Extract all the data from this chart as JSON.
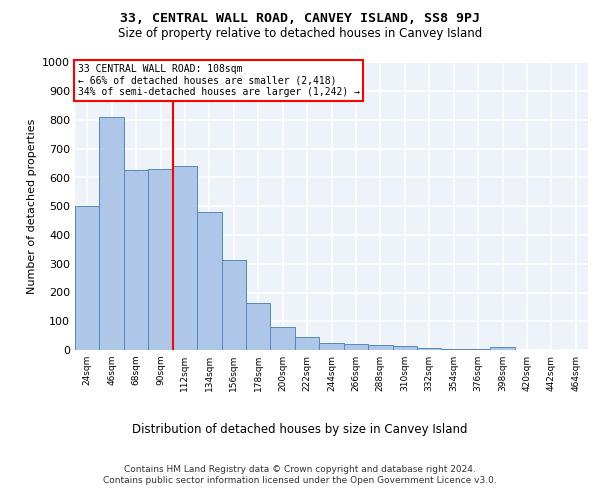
{
  "title": "33, CENTRAL WALL ROAD, CANVEY ISLAND, SS8 9PJ",
  "subtitle": "Size of property relative to detached houses in Canvey Island",
  "xlabel": "Distribution of detached houses by size in Canvey Island",
  "ylabel": "Number of detached properties",
  "footer_line1": "Contains HM Land Registry data © Crown copyright and database right 2024.",
  "footer_line2": "Contains public sector information licensed under the Open Government Licence v3.0.",
  "annotation_line1": "33 CENTRAL WALL ROAD: 108sqm",
  "annotation_line2": "← 66% of detached houses are smaller (2,418)",
  "annotation_line3": "34% of semi-detached houses are larger (1,242) →",
  "property_size": 108,
  "bar_color": "#aec6e8",
  "bar_edge_color": "#5588bb",
  "vline_color": "red",
  "categories": [
    "24sqm",
    "46sqm",
    "68sqm",
    "90sqm",
    "112sqm",
    "134sqm",
    "156sqm",
    "178sqm",
    "200sqm",
    "222sqm",
    "244sqm",
    "266sqm",
    "288sqm",
    "310sqm",
    "332sqm",
    "354sqm",
    "376sqm",
    "398sqm",
    "420sqm",
    "442sqm",
    "464sqm"
  ],
  "values": [
    500,
    810,
    625,
    630,
    640,
    480,
    312,
    162,
    80,
    45,
    25,
    22,
    18,
    13,
    8,
    5,
    5,
    10,
    0,
    0,
    0
  ],
  "ylim": [
    0,
    1000
  ],
  "yticks": [
    0,
    100,
    200,
    300,
    400,
    500,
    600,
    700,
    800,
    900,
    1000
  ],
  "bg_color": "#eef2f9",
  "grid_color": "white",
  "annotation_box_color": "white",
  "annotation_box_edge": "red",
  "vline_x": 3.5
}
